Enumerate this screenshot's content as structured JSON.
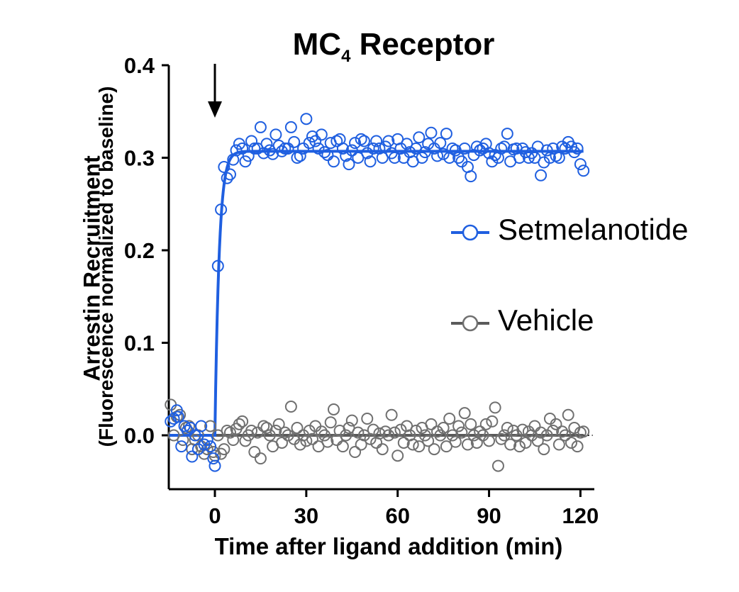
{
  "chart_data": {
    "type": "scatter",
    "title_main": "MC",
    "title_sub": "4",
    "title_rest": " Receptor",
    "ylabel": "Arrestin Recruitment",
    "ylabel2": "(Fluorescence normalized to baseline)",
    "xlabel": "Time after ligand addition (min)",
    "xlim": [
      -15,
      125
    ],
    "ylim": [
      -0.06,
      0.4
    ],
    "xticks": [
      0,
      30,
      60,
      90,
      120
    ],
    "xtick_labels": [
      "0",
      "30",
      "60",
      "90",
      "120"
    ],
    "yticks": [
      0.0,
      0.1,
      0.2,
      0.3,
      0.4
    ],
    "ytick_labels": [
      "0.0",
      "0.1",
      "0.2",
      "0.3",
      "0.4"
    ],
    "annotation": "arrow at x=0",
    "legend_position": "right",
    "series": [
      {
        "name": "Setmelanotide",
        "color": "#1f5fe0",
        "fit": "plateau 0.307 after rise starting at x=0 (tau ~1.4 min)",
        "points": [
          [
            -14.5,
            0.015
          ],
          [
            -13.5,
            0.018
          ],
          [
            -12.5,
            0.027
          ],
          [
            -12,
            0.02
          ],
          [
            -11,
            -0.012
          ],
          [
            -10,
            0.01
          ],
          [
            -9,
            0.005
          ],
          [
            -8,
            0.008
          ],
          [
            -7.5,
            -0.023
          ],
          [
            -6.5,
            0.0
          ],
          [
            -5.5,
            -0.015
          ],
          [
            -4.5,
            0.01
          ],
          [
            -3.5,
            -0.01
          ],
          [
            -2.5,
            -0.005
          ],
          [
            -1.5,
            -0.012
          ],
          [
            -0.5,
            -0.025
          ],
          [
            0,
            -0.033
          ],
          [
            1,
            0.183
          ],
          [
            2,
            0.244
          ],
          [
            3,
            0.29
          ],
          [
            4,
            0.278
          ],
          [
            5,
            0.282
          ],
          [
            6,
            0.298
          ],
          [
            7,
            0.308
          ],
          [
            8,
            0.315
          ],
          [
            9,
            0.31
          ],
          [
            10,
            0.296
          ],
          [
            11,
            0.302
          ],
          [
            12,
            0.318
          ],
          [
            13,
            0.31
          ],
          [
            14,
            0.31
          ],
          [
            15,
            0.333
          ],
          [
            16,
            0.305
          ],
          [
            17,
            0.315
          ],
          [
            18,
            0.308
          ],
          [
            19,
            0.304
          ],
          [
            20,
            0.325
          ],
          [
            21,
            0.313
          ],
          [
            22,
            0.307
          ],
          [
            23,
            0.31
          ],
          [
            24,
            0.31
          ],
          [
            25,
            0.333
          ],
          [
            26,
            0.317
          ],
          [
            27,
            0.3
          ],
          [
            28,
            0.302
          ],
          [
            29,
            0.31
          ],
          [
            30,
            0.342
          ],
          [
            31,
            0.316
          ],
          [
            32,
            0.323
          ],
          [
            33,
            0.318
          ],
          [
            34,
            0.31
          ],
          [
            35,
            0.325
          ],
          [
            36,
            0.306
          ],
          [
            37,
            0.303
          ],
          [
            38,
            0.316
          ],
          [
            39,
            0.296
          ],
          [
            40,
            0.318
          ],
          [
            41,
            0.32
          ],
          [
            42,
            0.31
          ],
          [
            43,
            0.302
          ],
          [
            44,
            0.293
          ],
          [
            45,
            0.308
          ],
          [
            46,
            0.316
          ],
          [
            47,
            0.3
          ],
          [
            48,
            0.32
          ],
          [
            49,
            0.318
          ],
          [
            50,
            0.305
          ],
          [
            51,
            0.296
          ],
          [
            52,
            0.31
          ],
          [
            53,
            0.318
          ],
          [
            54,
            0.31
          ],
          [
            55,
            0.3
          ],
          [
            56,
            0.312
          ],
          [
            57,
            0.318
          ],
          [
            58,
            0.305
          ],
          [
            59,
            0.3
          ],
          [
            60,
            0.32
          ],
          [
            61,
            0.31
          ],
          [
            62,
            0.3
          ],
          [
            63,
            0.315
          ],
          [
            64,
            0.306
          ],
          [
            65,
            0.296
          ],
          [
            66,
            0.31
          ],
          [
            67,
            0.322
          ],
          [
            68,
            0.3
          ],
          [
            69,
            0.306
          ],
          [
            70,
            0.315
          ],
          [
            71,
            0.327
          ],
          [
            72,
            0.31
          ],
          [
            73,
            0.302
          ],
          [
            74,
            0.316
          ],
          [
            75,
            0.304
          ],
          [
            76,
            0.326
          ],
          [
            77,
            0.3
          ],
          [
            78,
            0.31
          ],
          [
            79,
            0.308
          ],
          [
            80,
            0.3
          ],
          [
            81,
            0.296
          ],
          [
            82,
            0.31
          ],
          [
            83,
            0.29
          ],
          [
            84,
            0.28
          ],
          [
            85,
            0.303
          ],
          [
            86,
            0.312
          ],
          [
            87,
            0.308
          ],
          [
            88,
            0.31
          ],
          [
            89,
            0.315
          ],
          [
            90,
            0.305
          ],
          [
            91,
            0.296
          ],
          [
            92,
            0.303
          ],
          [
            93,
            0.3
          ],
          [
            94,
            0.31
          ],
          [
            95,
            0.312
          ],
          [
            96,
            0.326
          ],
          [
            97,
            0.296
          ],
          [
            98,
            0.309
          ],
          [
            99,
            0.31
          ],
          [
            100,
            0.3
          ],
          [
            101,
            0.31
          ],
          [
            102,
            0.306
          ],
          [
            103,
            0.3
          ],
          [
            104,
            0.305
          ],
          [
            105,
            0.3
          ],
          [
            106,
            0.312
          ],
          [
            107,
            0.281
          ],
          [
            108,
            0.295
          ],
          [
            109,
            0.308
          ],
          [
            110,
            0.3
          ],
          [
            111,
            0.31
          ],
          [
            112,
            0.302
          ],
          [
            113,
            0.3
          ],
          [
            114,
            0.312
          ],
          [
            115,
            0.31
          ],
          [
            116,
            0.317
          ],
          [
            117,
            0.312
          ],
          [
            118,
            0.306
          ],
          [
            119,
            0.31
          ],
          [
            120,
            0.293
          ],
          [
            121,
            0.286
          ]
        ]
      },
      {
        "name": "Vehicle",
        "color": "#707070",
        "fit": "flat line at 0.0",
        "points": [
          [
            -14.5,
            0.033
          ],
          [
            -13.5,
            0.0
          ],
          [
            -12.5,
            0.02
          ],
          [
            -11.5,
            0.022
          ],
          [
            -10.5,
            -0.005
          ],
          [
            -9.5,
            0.008
          ],
          [
            -8.5,
            0.01
          ],
          [
            -7.5,
            -0.015
          ],
          [
            -6.5,
            -0.005
          ],
          [
            -5.5,
            0.0
          ],
          [
            -4.5,
            -0.012
          ],
          [
            -3.5,
            -0.02
          ],
          [
            -2.5,
            -0.015
          ],
          [
            -1.5,
            0.01
          ],
          [
            -0.5,
            -0.018
          ],
          [
            0,
            -0.022
          ],
          [
            1,
            0.0
          ],
          [
            2,
            -0.02
          ],
          [
            3,
            -0.015
          ],
          [
            4,
            0.005
          ],
          [
            5,
            0.003
          ],
          [
            6,
            -0.005
          ],
          [
            7,
            0.007
          ],
          [
            8,
            0.012
          ],
          [
            9,
            0.015
          ],
          [
            10,
            -0.006
          ],
          [
            11,
            0.0
          ],
          [
            12,
            0.005
          ],
          [
            13,
            -0.018
          ],
          [
            14,
            0.003
          ],
          [
            15,
            -0.025
          ],
          [
            16,
            0.01
          ],
          [
            17,
            0.008
          ],
          [
            18,
            0.0
          ],
          [
            19,
            -0.012
          ],
          [
            20,
            0.005
          ],
          [
            21,
            0.012
          ],
          [
            22,
            -0.008
          ],
          [
            23,
            0.003
          ],
          [
            24,
            0.0
          ],
          [
            25,
            0.031
          ],
          [
            26,
            -0.004
          ],
          [
            27,
            0.008
          ],
          [
            28,
            -0.01
          ],
          [
            29,
            0.0
          ],
          [
            30,
            -0.006
          ],
          [
            31,
            0.005
          ],
          [
            32,
            -0.004
          ],
          [
            33,
            0.01
          ],
          [
            34,
            -0.012
          ],
          [
            35,
            0.004
          ],
          [
            36,
            0.0
          ],
          [
            37,
            -0.007
          ],
          [
            38,
            0.014
          ],
          [
            39,
            0.028
          ],
          [
            40,
            -0.005
          ],
          [
            41,
            0.005
          ],
          [
            42,
            -0.012
          ],
          [
            43,
            0.0
          ],
          [
            44,
            0.008
          ],
          [
            45,
            0.016
          ],
          [
            46,
            -0.018
          ],
          [
            47,
            0.003
          ],
          [
            48,
            -0.01
          ],
          [
            49,
            0.0
          ],
          [
            50,
            0.018
          ],
          [
            51,
            -0.004
          ],
          [
            52,
            0.006
          ],
          [
            53,
            -0.008
          ],
          [
            54,
            0.002
          ],
          [
            55,
            -0.015
          ],
          [
            56,
            0.004
          ],
          [
            57,
            0.0
          ],
          [
            58,
            0.022
          ],
          [
            59,
            0.003
          ],
          [
            60,
            -0.022
          ],
          [
            61,
            0.006
          ],
          [
            62,
            -0.008
          ],
          [
            63,
            0.01
          ],
          [
            64,
            0.0
          ],
          [
            65,
            -0.01
          ],
          [
            66,
            0.005
          ],
          [
            67,
            -0.012
          ],
          [
            68,
            0.008
          ],
          [
            69,
            0.0
          ],
          [
            70,
            -0.006
          ],
          [
            71,
            0.012
          ],
          [
            72,
            -0.015
          ],
          [
            73,
            0.004
          ],
          [
            74,
            0.0
          ],
          [
            75,
            0.008
          ],
          [
            76,
            -0.012
          ],
          [
            77,
            0.018
          ],
          [
            78,
            0.0
          ],
          [
            79,
            -0.007
          ],
          [
            80,
            0.01
          ],
          [
            81,
            0.003
          ],
          [
            82,
            0.024
          ],
          [
            83,
            -0.01
          ],
          [
            84,
            0.012
          ],
          [
            85,
            0.0
          ],
          [
            86,
            -0.008
          ],
          [
            87,
            0.004
          ],
          [
            88,
            0.0
          ],
          [
            89,
            0.012
          ],
          [
            90,
            -0.006
          ],
          [
            91,
            0.015
          ],
          [
            92,
            0.03
          ],
          [
            93,
            -0.033
          ],
          [
            94,
            -0.004
          ],
          [
            95,
            0.0
          ],
          [
            96,
            0.008
          ],
          [
            97,
            -0.01
          ],
          [
            98,
            0.005
          ],
          [
            99,
            0.0
          ],
          [
            100,
            -0.012
          ],
          [
            101,
            0.006
          ],
          [
            102,
            -0.008
          ],
          [
            103,
            0.004
          ],
          [
            104,
            0.0
          ],
          [
            105,
            0.01
          ],
          [
            106,
            -0.006
          ],
          [
            107,
            0.003
          ],
          [
            108,
            -0.015
          ],
          [
            109,
            0.0
          ],
          [
            110,
            0.018
          ],
          [
            111,
            0.005
          ],
          [
            112,
            0.012
          ],
          [
            113,
            -0.01
          ],
          [
            114,
            0.004
          ],
          [
            115,
            0.0
          ],
          [
            116,
            0.022
          ],
          [
            117,
            -0.008
          ],
          [
            118,
            0.008
          ],
          [
            119,
            -0.012
          ],
          [
            120,
            0.003
          ],
          [
            121,
            0.004
          ]
        ]
      }
    ]
  }
}
